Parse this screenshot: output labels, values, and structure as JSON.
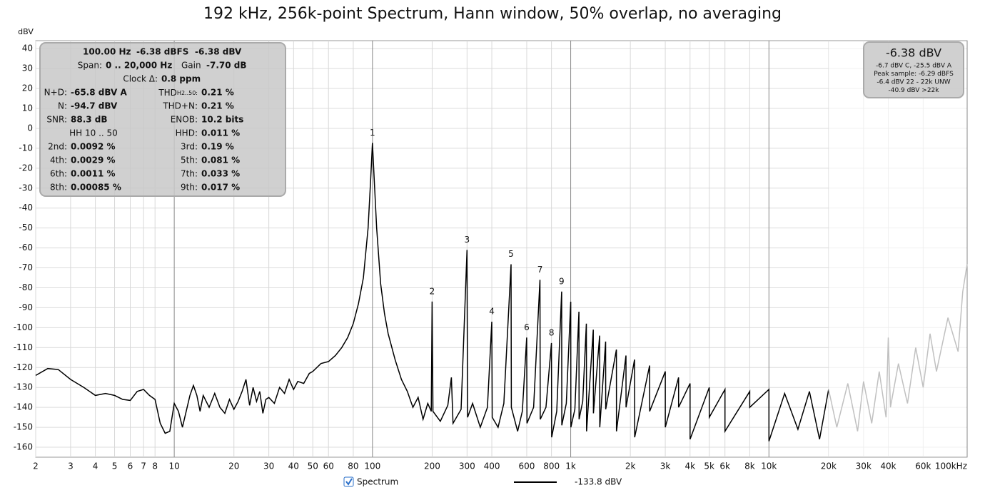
{
  "chart_data": {
    "type": "line",
    "title": "192 kHz, 256k-point Spectrum, Hann window, 50% overlap, no averaging",
    "y_label": "dBV",
    "xscale": "log",
    "grid": true,
    "xlim": [
      2,
      100000
    ],
    "ylim": [
      -165,
      44
    ],
    "yticks": [
      40,
      30,
      20,
      10,
      0,
      -10,
      -20,
      -30,
      -40,
      -50,
      -60,
      -70,
      -80,
      -90,
      -100,
      -110,
      -120,
      -130,
      -140,
      -150,
      -160
    ],
    "xticks": [
      2,
      3,
      4,
      5,
      6,
      7,
      8,
      10,
      20,
      30,
      40,
      50,
      60,
      80,
      100,
      200,
      300,
      400,
      600,
      800,
      {
        "value": 1000,
        "label": "1k"
      },
      {
        "value": 2000,
        "label": "2k"
      },
      {
        "value": 3000,
        "label": "3k"
      },
      {
        "value": 4000,
        "label": "4k"
      },
      {
        "value": 5000,
        "label": "5k"
      },
      {
        "value": 6000,
        "label": "6k"
      },
      {
        "value": 8000,
        "label": "8k"
      },
      {
        "value": 10000,
        "label": "10k"
      },
      {
        "value": 20000,
        "label": "20k"
      },
      {
        "value": 30000,
        "label": "30k"
      },
      {
        "value": 40000,
        "label": "40k"
      },
      {
        "value": 60000,
        "label": "60k"
      },
      {
        "value": 100000,
        "label": "100kHz"
      }
    ],
    "series": [
      {
        "name": "Spectrum",
        "color": "#000000",
        "legend_value": "-133.8 dBV",
        "x": [
          2,
          2.3,
          2.6,
          3,
          3.5,
          4,
          4.5,
          5,
          5.5,
          6,
          6.5,
          7,
          7.5,
          8,
          8.5,
          9,
          9.5,
          10,
          10.5,
          11,
          12,
          12.5,
          13,
          13.5,
          14,
          15,
          16,
          17,
          18,
          19,
          20,
          21,
          22,
          23,
          24,
          25,
          26,
          27,
          28,
          29,
          30,
          32,
          34,
          36,
          38,
          40,
          42,
          45,
          48,
          50,
          55,
          60,
          65,
          70,
          75,
          80,
          85,
          90,
          95,
          98,
          100,
          102,
          105,
          110,
          115,
          120,
          130,
          140,
          150,
          160,
          170,
          180,
          190,
          198,
          200,
          202,
          220,
          240,
          250,
          255,
          280,
          300,
          302,
          320,
          350,
          380,
          400,
          402,
          430,
          460,
          500,
          502,
          540,
          570,
          600,
          602,
          650,
          700,
          702,
          750,
          800,
          802,
          850,
          900,
          902,
          950,
          1000,
          1002,
          1050,
          1100,
          1102,
          1150,
          1200,
          1202,
          1300,
          1302,
          1400,
          1402,
          1500,
          1502,
          1700,
          1702,
          1900,
          1902,
          2100,
          2102,
          2500,
          2502,
          3000,
          3002,
          3500,
          3502,
          4000,
          4002,
          5000,
          5002,
          6000,
          6002,
          8000,
          8002,
          10000,
          10002,
          12000,
          14000,
          16000,
          18000,
          20000
        ],
        "values": [
          -124,
          -120.5,
          -121,
          -126,
          -130,
          -134,
          -133,
          -134,
          -136,
          -136.5,
          -132,
          -131,
          -134,
          -136,
          -148,
          -153,
          -152,
          -138,
          -142,
          -150,
          -134,
          -129,
          -134,
          -142,
          -134,
          -140,
          -133,
          -140,
          -143,
          -136,
          -141,
          -137,
          -132,
          -126,
          -139,
          -130,
          -137,
          -132,
          -143,
          -136,
          -135,
          -138,
          -130,
          -133,
          -126,
          -131,
          -127,
          -128,
          -123,
          -122,
          -118,
          -117,
          -114,
          -110,
          -105,
          -98,
          -88,
          -75,
          -50,
          -25,
          -7.3,
          -25,
          -50,
          -78,
          -93,
          -103,
          -116,
          -126,
          -132,
          -140,
          -135,
          -146,
          -138,
          -142,
          -86.9,
          -142,
          -147,
          -139,
          -125,
          -148,
          -141,
          -61,
          -145,
          -138,
          -150,
          -140,
          -97,
          -145,
          -150,
          -138,
          -68.2,
          -140,
          -152,
          -142,
          -105,
          -148,
          -140,
          -76,
          -146,
          -140,
          -107.7,
          -155,
          -142,
          -81.9,
          -149,
          -138,
          -87,
          -150,
          -141,
          -92,
          -146,
          -137,
          -98,
          -152,
          -101,
          -143,
          -104,
          -150,
          -107,
          -141,
          -111,
          -152,
          -114,
          -140,
          -116,
          -155,
          -119,
          -142,
          -122,
          -150,
          -125,
          -140,
          -128,
          -156,
          -130,
          -145,
          -131,
          -152,
          -132,
          -140,
          -131,
          -157,
          -133,
          -151,
          -132,
          -156,
          -131
        ]
      },
      {
        "color": "#c0c0c0",
        "x": [
          20000,
          22000,
          25000,
          28000,
          30000,
          33000,
          36000,
          39000,
          40000,
          41000,
          45000,
          50000,
          55000,
          60000,
          65000,
          70000,
          80000,
          90000,
          95000,
          100000
        ],
        "values": [
          -131,
          -150,
          -128,
          -152,
          -127,
          -148,
          -122,
          -145,
          -105,
          -140,
          -118,
          -138,
          -110,
          -130,
          -103,
          -122,
          -95,
          -112,
          -82,
          -68
        ]
      }
    ],
    "peak_labels": [
      {
        "text": "1",
        "x": 100,
        "y": -7.3
      },
      {
        "text": "2",
        "x": 200,
        "y": -86.9
      },
      {
        "text": "3",
        "x": 300,
        "y": -61
      },
      {
        "text": "4",
        "x": 400,
        "y": -97
      },
      {
        "text": "5",
        "x": 500,
        "y": -68.2
      },
      {
        "text": "6",
        "x": 600,
        "y": -105
      },
      {
        "text": "7",
        "x": 700,
        "y": -76
      },
      {
        "text": "8",
        "x": 800,
        "y": -107.7
      },
      {
        "text": "9",
        "x": 900,
        "y": -81.9
      }
    ],
    "info_panel": {
      "header": [
        "100.00 Hz",
        "-6.38 dBFS",
        "-6.38 dBV"
      ],
      "span": {
        "label": "Span:",
        "value": "0 .. 20,000 Hz",
        "gain_label": "Gain",
        "gain_value": "-7.70 dB"
      },
      "clock": {
        "label": "Clock Δ:",
        "value": "0.8 ppm"
      },
      "left": [
        [
          "N+D:",
          "-65.8 dBV A"
        ],
        [
          "N:",
          "-94.7 dBV"
        ],
        [
          "SNR:",
          "88.3 dB"
        ],
        [
          "HH 10 .. 50"
        ],
        [
          "2nd:",
          "0.0092 %"
        ],
        [
          "4th:",
          "0.0029 %"
        ],
        [
          "6th:",
          "0.0011 %"
        ],
        [
          "8th:",
          "0.00085 %"
        ]
      ],
      "right": [
        [
          "THD",
          "H2..50:",
          "0.21 %"
        ],
        [
          "THD+N:",
          "0.21 %"
        ],
        [
          "ENOB:",
          "10.2 bits"
        ],
        [
          "HHD:",
          "0.011 %"
        ],
        [
          "3rd:",
          "0.19 %"
        ],
        [
          "5th:",
          "0.081 %"
        ],
        [
          "7th:",
          "0.033 %"
        ],
        [
          "9th:",
          "0.017 %"
        ]
      ]
    },
    "level_panel": {
      "value": "-6.38 dBV",
      "lines": [
        "-6.7 dBV C, -25.5 dBV A",
        "Peak sample: -6.29 dBFS",
        "-6.4 dBV 22 - 22k UNW",
        "-40.9 dBV >22k"
      ]
    }
  }
}
